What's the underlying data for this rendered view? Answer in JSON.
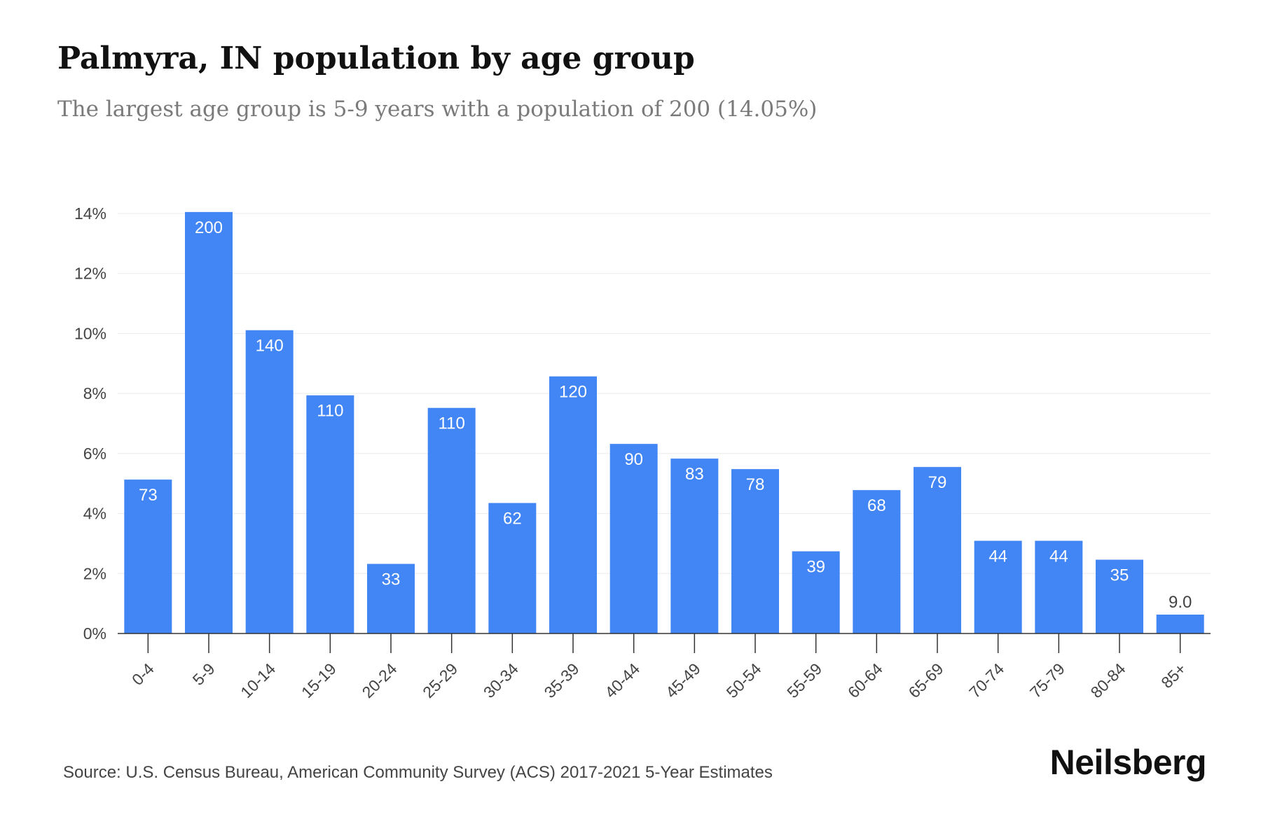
{
  "title": "Palmyra, IN population by age group",
  "subtitle": "The largest age group is 5-9 years with a population of 200 (14.05%)",
  "source": "Source: U.S. Census Bureau, American Community Survey (ACS) 2017-2021 5-Year Estimates",
  "brand": "Neilsberg",
  "colors": {
    "bar": "#4285f4",
    "bar_label": "#ffffff",
    "outside_label": "#444444",
    "grid": "#ebebeb",
    "axis": "#333333",
    "tick_label": "#444444"
  },
  "chart_data": {
    "type": "bar",
    "categories": [
      "0-4",
      "5-9",
      "10-14",
      "15-19",
      "20-24",
      "25-29",
      "30-34",
      "35-39",
      "40-44",
      "45-49",
      "50-54",
      "55-59",
      "60-64",
      "65-69",
      "70-74",
      "75-79",
      "80-84",
      "85+"
    ],
    "values": [
      5.13,
      14.05,
      10.11,
      7.94,
      2.32,
      7.52,
      4.35,
      8.57,
      6.32,
      5.83,
      5.48,
      2.74,
      4.78,
      5.55,
      3.09,
      3.09,
      2.46,
      0.63
    ],
    "data_labels": [
      "73",
      "200",
      "140",
      "110",
      "33",
      "110",
      "62",
      "120",
      "90",
      "83",
      "78",
      "39",
      "68",
      "79",
      "44",
      "44",
      "35",
      "9.0"
    ],
    "y_ticks": [
      "0%",
      "2%",
      "4%",
      "6%",
      "8%",
      "10%",
      "12%",
      "14%"
    ],
    "y_tick_values": [
      0,
      2,
      4,
      6,
      8,
      10,
      12,
      14
    ],
    "ylim": [
      0,
      14
    ],
    "grid": true,
    "xlabel": "",
    "ylabel": ""
  }
}
